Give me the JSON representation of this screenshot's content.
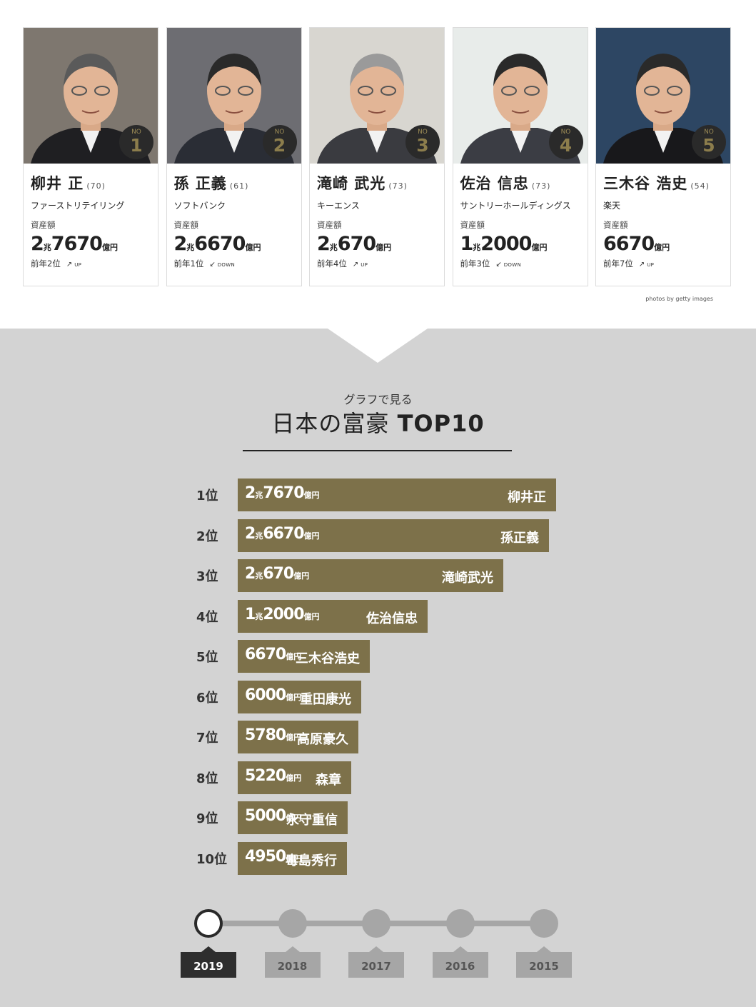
{
  "cards": [
    {
      "rank_no": "NO",
      "rank": "1",
      "name": "柳井 正",
      "age": "(70)",
      "company": "ファーストリテイリング",
      "asset_label": "資産額",
      "asset_a": "2",
      "asset_u1": "兆",
      "asset_b": "7670",
      "asset_u2": "億円",
      "prev": "前年2位",
      "arrow": "↗",
      "dir": "UP"
    },
    {
      "rank_no": "NO",
      "rank": "2",
      "name": "孫 正義",
      "age": "(61)",
      "company": "ソフトバンク",
      "asset_label": "資産額",
      "asset_a": "2",
      "asset_u1": "兆",
      "asset_b": "6670",
      "asset_u2": "億円",
      "prev": "前年1位",
      "arrow": "↙",
      "dir": "DOWN"
    },
    {
      "rank_no": "NO",
      "rank": "3",
      "name": "滝崎 武光",
      "age": "(73)",
      "company": "キーエンス",
      "asset_label": "資産額",
      "asset_a": "2",
      "asset_u1": "兆",
      "asset_b": "670",
      "asset_u2": "億円",
      "prev": "前年4位",
      "arrow": "↗",
      "dir": "UP"
    },
    {
      "rank_no": "NO",
      "rank": "4",
      "name": "佐治 信忠",
      "age": "(73)",
      "company": "サントリーホールディングス",
      "asset_label": "資産額",
      "asset_a": "1",
      "asset_u1": "兆",
      "asset_b": "2000",
      "asset_u2": "億円",
      "prev": "前年3位",
      "arrow": "↙",
      "dir": "DOWN"
    },
    {
      "rank_no": "NO",
      "rank": "5",
      "name": "三木谷 浩史",
      "age": "(54)",
      "company": "楽天",
      "asset_label": "資産額",
      "asset_a": "",
      "asset_u1": "",
      "asset_b": "6670",
      "asset_u2": "億円",
      "prev": "前年7位",
      "arrow": "↗",
      "dir": "UP"
    }
  ],
  "credit": "photos by getty images",
  "subtitle": "グラフで見る",
  "title_ja": "日本の富豪 ",
  "title_en": "TOP10",
  "chart_data": {
    "type": "bar",
    "orientation": "horizontal",
    "unit": "億円",
    "categories": [
      "1位",
      "2位",
      "3位",
      "4位",
      "5位",
      "6位",
      "7位",
      "8位",
      "9位",
      "10位"
    ],
    "names": [
      "柳井正",
      "孫正義",
      "滝崎武光",
      "佐治信忠",
      "三木谷浩史",
      "重田康光",
      "高原豪久",
      "森章",
      "永守重信",
      "毒島秀行"
    ],
    "values": [
      27670,
      26670,
      20670,
      12000,
      6670,
      6000,
      5780,
      5220,
      5000,
      4950
    ],
    "value_labels": [
      {
        "a": "2",
        "u1": "兆",
        "b": "7670",
        "u2": "億円"
      },
      {
        "a": "2",
        "u1": "兆",
        "b": "6670",
        "u2": "億円"
      },
      {
        "a": "2",
        "u1": "兆",
        "b": "670",
        "u2": "億円"
      },
      {
        "a": "1",
        "u1": "兆",
        "b": "2000",
        "u2": "億円"
      },
      {
        "a": "",
        "u1": "",
        "b": "6670",
        "u2": "億円"
      },
      {
        "a": "",
        "u1": "",
        "b": "6000",
        "u2": "億円"
      },
      {
        "a": "",
        "u1": "",
        "b": "5780",
        "u2": "億円"
      },
      {
        "a": "",
        "u1": "",
        "b": "5220",
        "u2": "億円"
      },
      {
        "a": "",
        "u1": "",
        "b": "5000",
        "u2": "億円"
      },
      {
        "a": "",
        "u1": "",
        "b": "4950",
        "u2": "億円"
      }
    ],
    "color": "#7d714a"
  },
  "years": [
    "2019",
    "2018",
    "2017",
    "2016",
    "2015"
  ],
  "selected_year": "2019",
  "colors": {
    "bar": "#7d714a",
    "background": "#d3d3d3",
    "badge": "#2a2a2a",
    "badge_text": "#8c7d4c"
  }
}
